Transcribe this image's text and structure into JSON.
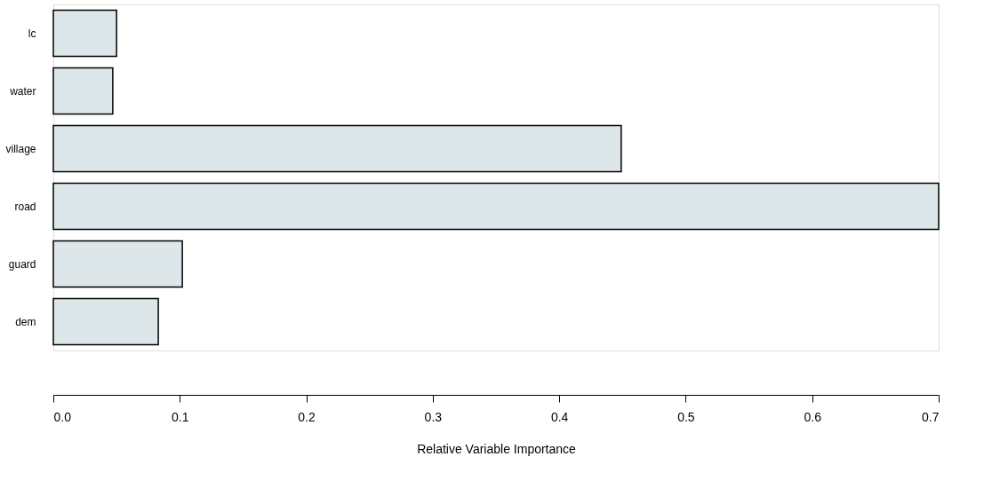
{
  "chart_data": {
    "type": "bar",
    "orientation": "horizontal",
    "xlabel": "Relative Variable Importance",
    "categories": [
      "lc",
      "water",
      "village",
      "road",
      "guard",
      "dem"
    ],
    "values": [
      0.05,
      0.047,
      0.449,
      0.7,
      0.102,
      0.083
    ],
    "color": "#dde6e8",
    "xlim": [
      0,
      0.7
    ],
    "xticks": [
      {
        "value": 0,
        "label": "0.0"
      },
      0.1,
      0.2,
      0.3,
      0.4,
      0.5,
      0.6,
      0.7
    ],
    "grid": false
  }
}
